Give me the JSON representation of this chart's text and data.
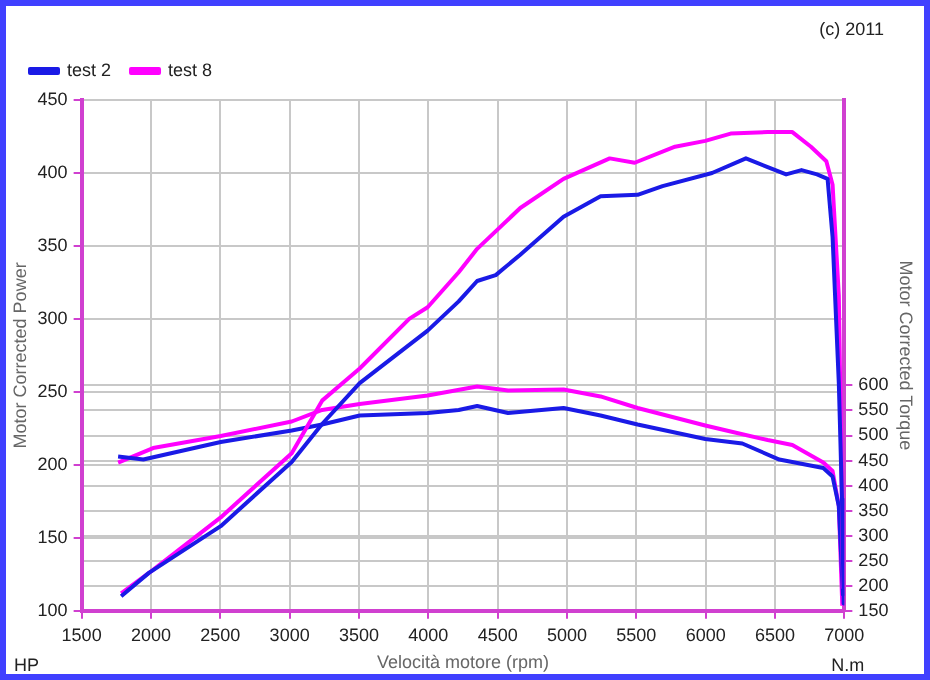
{
  "chart_data": {
    "type": "line",
    "xlabel": "Velocità motore (rpm)",
    "ylabel": "Motor Corrected Power",
    "y2label": "Motor Corrected Torque",
    "annotations": [
      "HP",
      "N.m",
      "(c) 2011"
    ],
    "xlim": [
      1500,
      7000
    ],
    "xticks": [
      1500,
      2000,
      2500,
      3000,
      3500,
      4000,
      4500,
      5000,
      5500,
      6000,
      6500,
      7000
    ],
    "ylim": [
      100,
      450
    ],
    "yticks": [
      100,
      150,
      200,
      250,
      300,
      350,
      400,
      450
    ],
    "y2lim": [
      150,
      1170
    ],
    "y2ticks": [
      150,
      200,
      250,
      300,
      350,
      400,
      450,
      500,
      550,
      600
    ],
    "grid": true,
    "legend": "top left",
    "marker": "none",
    "line_style": "solid",
    "series": [
      {
        "name": "test 2",
        "color": "#1a1ae6",
        "x": [
          1785,
          1985,
          2503,
          3015,
          3234,
          3505,
          3995,
          4219,
          4352,
          4486,
          4663,
          4975,
          5242,
          5509,
          5689,
          6046,
          6290,
          6447,
          6580,
          6691,
          6803,
          6879,
          6915,
          6960,
          6983,
          6995
        ],
        "values": [
          110,
          126,
          158,
          202,
          228,
          256,
          292,
          312,
          326,
          330,
          344,
          370,
          384,
          385,
          391,
          400,
          410,
          404,
          399,
          402,
          399,
          396,
          356,
          256,
          176,
          105
        ]
      },
      {
        "name": "test 8",
        "color": "#ff00ff",
        "x": [
          1785,
          2015,
          2503,
          3015,
          3234,
          3505,
          3862,
          3995,
          4219,
          4352,
          4663,
          4975,
          5308,
          5488,
          5779,
          5997,
          6180,
          6447,
          6625,
          6759,
          6870,
          6915,
          6960,
          6983,
          6990
        ],
        "values": [
          112,
          128,
          164,
          208,
          244,
          266,
          300,
          308,
          332,
          348,
          376,
          396,
          410,
          407,
          418,
          422,
          427,
          428,
          428,
          418,
          408,
          392,
          316,
          172,
          116
        ]
      },
      {
        "color": "#1a1ae6",
        "axis": "y2",
        "x": [
          1763,
          1945,
          2503,
          3015,
          3234,
          3505,
          3995,
          4219,
          4352,
          4575,
          4975,
          5242,
          5509,
          5997,
          6264,
          6531,
          6848,
          6915,
          6960,
          6990
        ],
        "values": [
          458,
          452,
          487,
          510,
          522,
          540,
          545,
          551,
          559,
          545,
          555,
          540,
          522,
          493,
          484,
          452,
          435,
          418,
          359,
          180
        ]
      },
      {
        "color": "#ff00ff",
        "axis": "y2",
        "x": [
          1763,
          2015,
          2503,
          3015,
          3234,
          3505,
          3995,
          4352,
          4575,
          4975,
          5242,
          5509,
          5997,
          6180,
          6447,
          6625,
          6848,
          6915,
          6960,
          6985
        ],
        "values": [
          446,
          475,
          499,
          528,
          551,
          563,
          580,
          598,
          590,
          592,
          578,
          555,
          520,
          508,
          491,
          481,
          446,
          429,
          359,
          160
        ]
      }
    ]
  }
}
